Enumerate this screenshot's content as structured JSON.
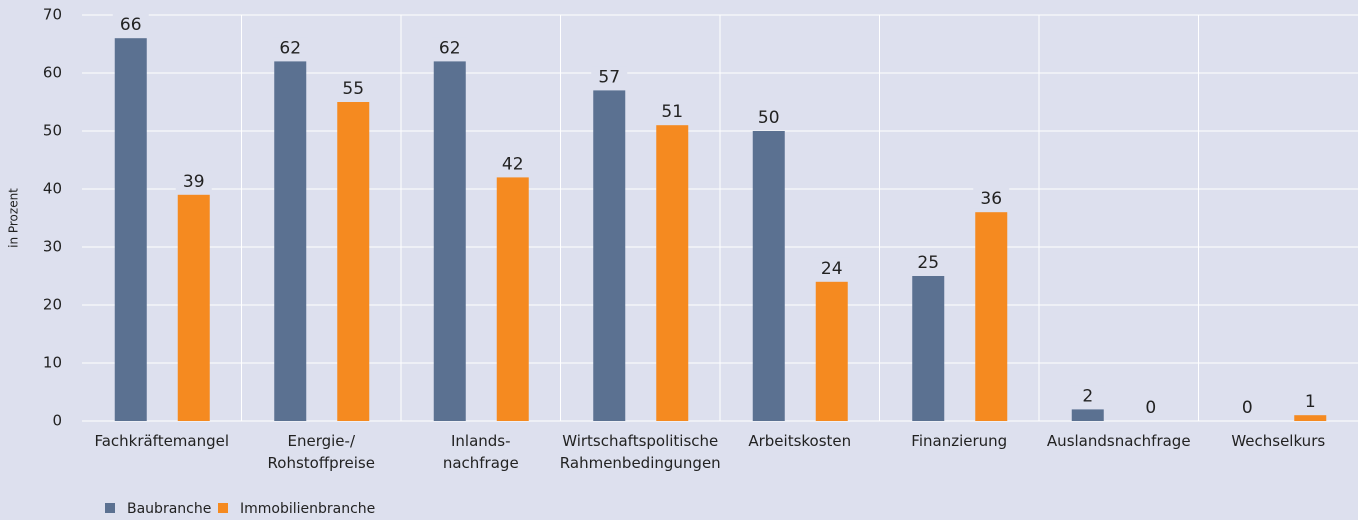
{
  "chart_data": {
    "type": "bar",
    "y_label": "in Prozent",
    "categories": [
      [
        "Fachkräftemangel"
      ],
      [
        "Energie-/",
        "Rohstoffpreise"
      ],
      [
        "Inlands-",
        "nachfrage"
      ],
      [
        "Wirtschaftspolitische",
        "Rahmenbedingungen"
      ],
      [
        "Arbeitskosten"
      ],
      [
        "Finanzierung"
      ],
      [
        "Auslandsnachfrage"
      ],
      [
        "Wechselkurs"
      ]
    ],
    "series": [
      {
        "name": "Baubranche",
        "color": "#5b7191",
        "values": [
          66,
          62,
          62,
          57,
          50,
          25,
          2,
          0
        ]
      },
      {
        "name": "Immobilienbranche",
        "color": "#f58a20",
        "values": [
          39,
          55,
          42,
          51,
          24,
          36,
          0,
          1
        ]
      }
    ],
    "ylim": [
      0,
      70
    ],
    "yticks": [
      0,
      10,
      20,
      30,
      40,
      50,
      60,
      70
    ],
    "grid": true
  }
}
